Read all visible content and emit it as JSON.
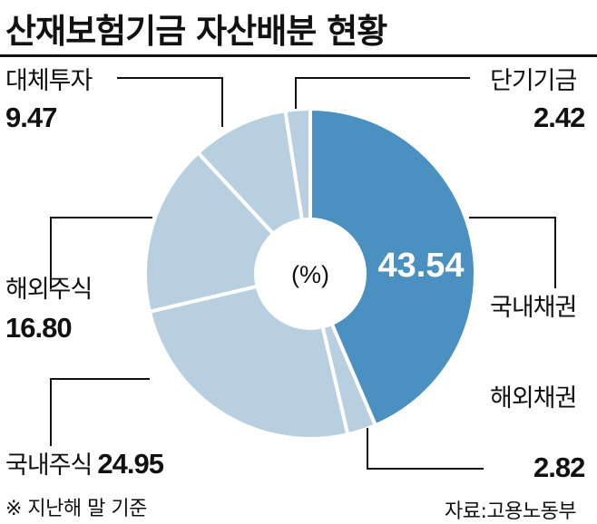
{
  "title": "산재보험기금 자산배분 현황",
  "footnote": "※ 지난해 말 기준",
  "source": "자료:고용노동부",
  "chart_data": {
    "type": "pie",
    "title": "산재보험기금 자산배분 현황",
    "unit": "(%)",
    "slices": [
      {
        "label": "국내채권",
        "value": 43.54,
        "value_text": "43.54",
        "color": "#4a90c0"
      },
      {
        "label": "해외채권",
        "value": 2.82,
        "value_text": "2.82",
        "color": "#b7cfdf"
      },
      {
        "label": "국내주식",
        "value": 24.95,
        "value_text": "24.95",
        "color": "#b7cfdf"
      },
      {
        "label": "해외주식",
        "value": 16.8,
        "value_text": "16.80",
        "color": "#b7cfdf"
      },
      {
        "label": "대체투자",
        "value": 9.47,
        "value_text": "9.47",
        "color": "#b7cfdf"
      },
      {
        "label": "단기기금",
        "value": 2.42,
        "value_text": "2.42",
        "color": "#b7cfdf"
      }
    ]
  }
}
